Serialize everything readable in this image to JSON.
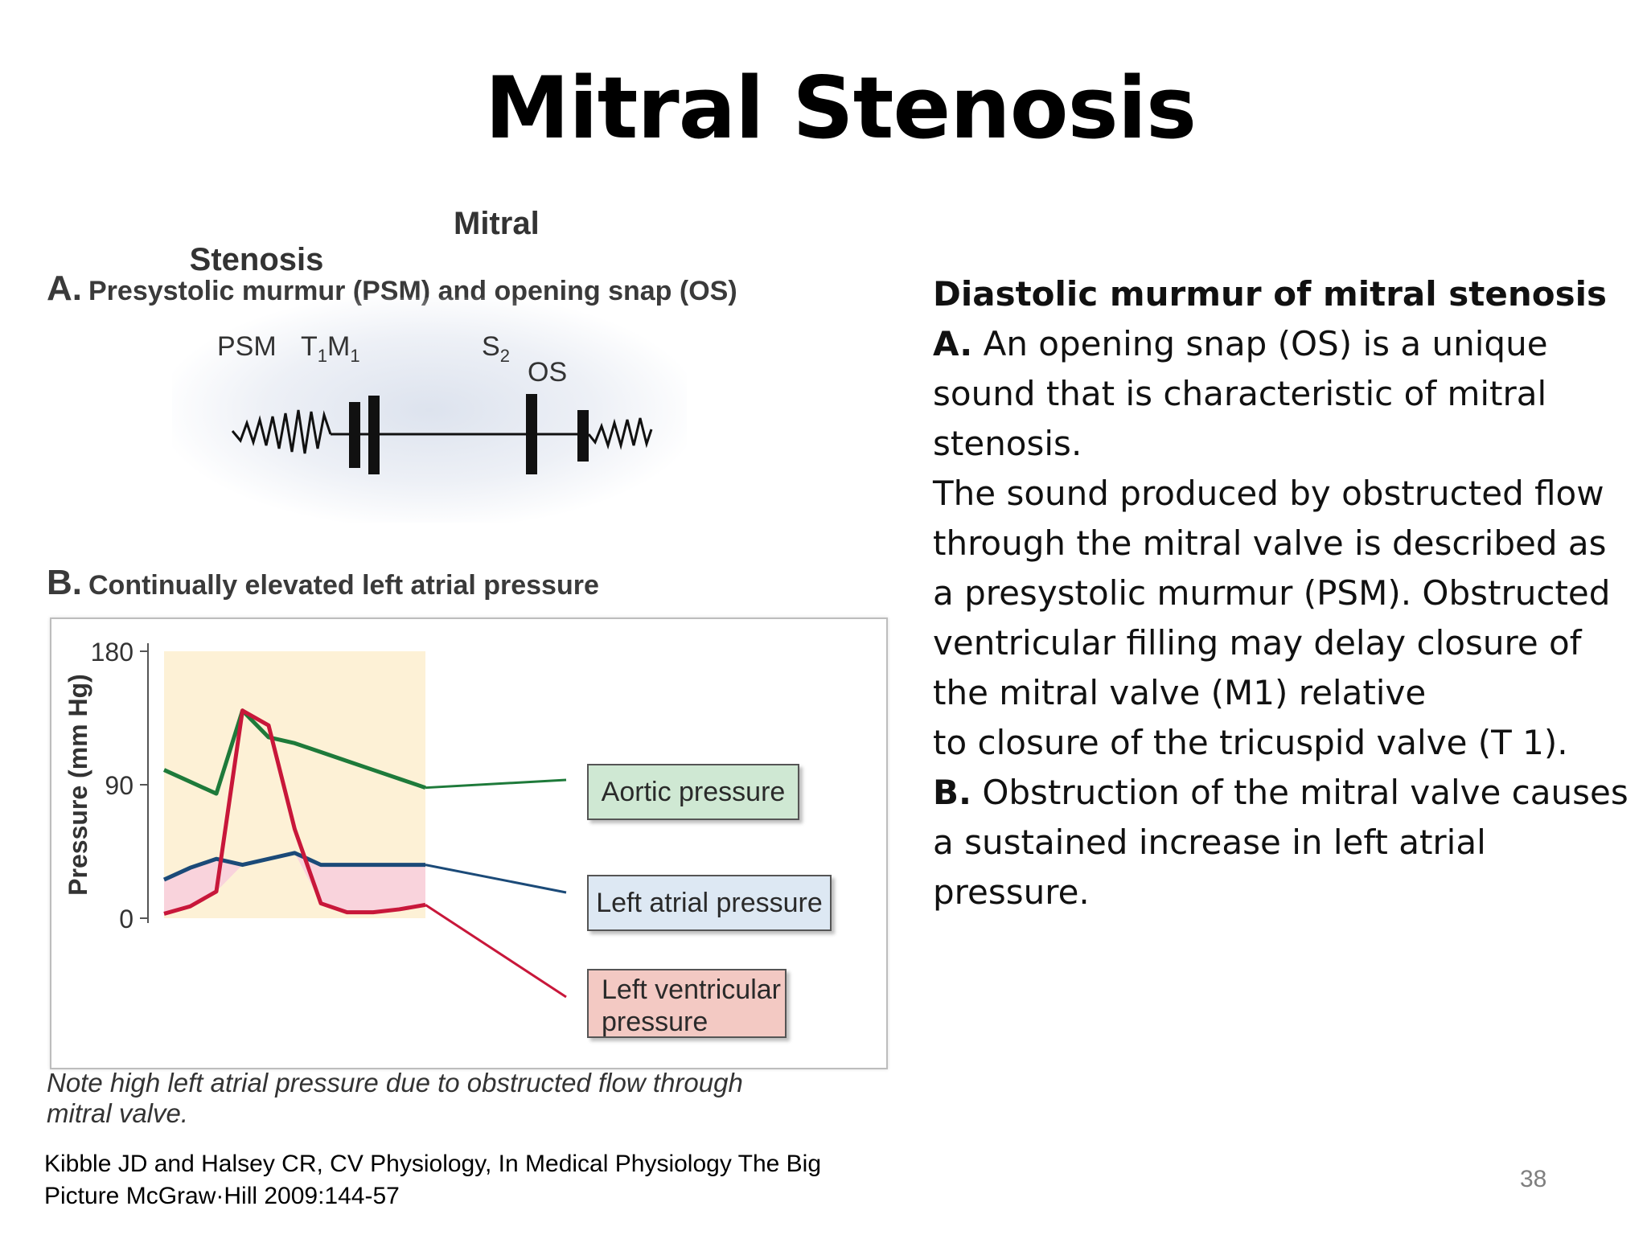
{
  "slide": {
    "title": "Mitral Stenosis",
    "page_number": "38",
    "citation_line1": "Kibble JD and Halsey CR, CV Physiology, In Medical Physiology The Big",
    "citation_line2": "Picture McGraw·Hill 2009:144-57"
  },
  "figure": {
    "title": "Mitral Stenosis",
    "section_a": {
      "letter": "A.",
      "text": "Presystolic murmur (PSM) and opening snap (OS)"
    },
    "section_b": {
      "letter": "B.",
      "text": "Continually elevated left atrial pressure"
    },
    "heart_sounds": {
      "psm": "PSM",
      "t": "T",
      "t_sub": "1",
      "m": "M",
      "m_sub": "1",
      "s": "S",
      "s_sub": "2",
      "os": "OS"
    },
    "caption_line1": "Note high left atrial pressure due to obstructed flow through",
    "caption_line2": "mitral valve."
  },
  "chart_data": {
    "type": "line",
    "ylabel": "Pressure (mm Hg)",
    "yticks": [
      0,
      90,
      180
    ],
    "ylim": [
      0,
      180
    ],
    "x": [
      0,
      10,
      20,
      30,
      40,
      50,
      60,
      70,
      80,
      90,
      100
    ],
    "series": [
      {
        "name": "Aortic pressure",
        "color": "#1e7a3a",
        "values": [
          100,
          92,
          84,
          140,
          122,
          118,
          112,
          106,
          100,
          94,
          88
        ]
      },
      {
        "name": "Left atrial pressure",
        "color": "#1b4a78",
        "values": [
          26,
          34,
          40,
          36,
          40,
          44,
          36,
          36,
          36,
          36,
          36
        ]
      },
      {
        "name": "Left ventricular pressure",
        "color": "#c8173a",
        "values": [
          3,
          8,
          18,
          140,
          130,
          60,
          10,
          4,
          4,
          6,
          9
        ]
      }
    ],
    "legend": {
      "aortic": "Aortic pressure",
      "la": "Left atrial pressure",
      "lv_line1": "Left ventricular",
      "lv_line2": "pressure"
    },
    "colors": {
      "systole_shading": "#fdf1d6",
      "la_lv_gradient_fill": "#f9d3dc"
    }
  },
  "text": {
    "heading": "Diastolic murmur of mitral stenosis",
    "a_label": "A.",
    "a_text_line1": "An opening snap (OS) is a unique",
    "a_text_line2": "sound that is characteristic of mitral",
    "a_text_line3": "stenosis.",
    "psm_line1": "The sound produced by obstructed flow",
    "psm_line2": "through the mitral valve is described as",
    "psm_line3": "a presystolic murmur (PSM). Obstructed",
    "psm_line4": "ventricular filling may delay closure of",
    "psm_line5": "the mitral valve (M1) relative",
    "psm_line6": "to closure of the tricuspid valve (T 1).",
    "b_label": "B.",
    "b_text_line1": "Obstruction of the mitral valve causes",
    "b_text_line2": "a sustained increase in left atrial",
    "b_text_line3": "pressure."
  }
}
